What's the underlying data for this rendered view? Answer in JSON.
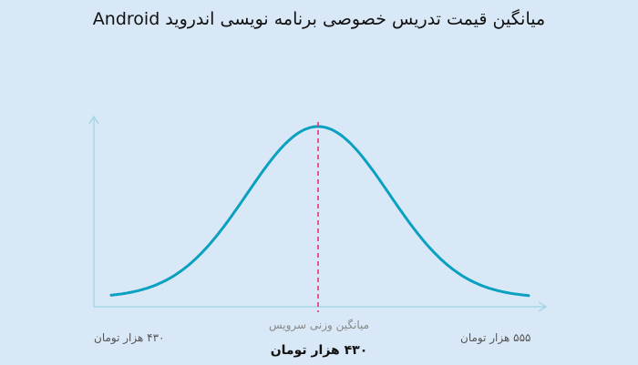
{
  "title": "میانگین قیمت تدریس خصوصی برنامه نویسی اندروید Android",
  "colors": {
    "background": "#d9e8f6",
    "curve": "#0aa0c0",
    "mean_line": "#e8336d",
    "axis": "#9fd3e3"
  },
  "chart_data": {
    "type": "line",
    "shape": "bell-curve",
    "x": [
      430,
      492.5,
      555
    ],
    "x_tick_labels": [
      "۴۳۰ هزار تومان",
      "۵۵۵ هزار تومان"
    ],
    "mean": {
      "value": 430,
      "caption": "میانگین وزنی سرویس",
      "label": "۴۳۰ هزار تومان"
    },
    "grid": false,
    "legend": "none"
  }
}
